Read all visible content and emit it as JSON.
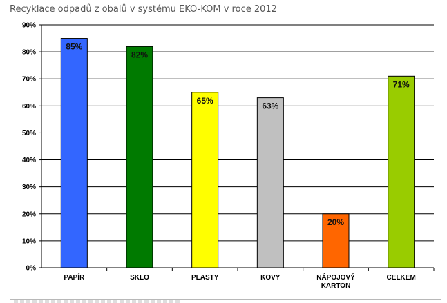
{
  "page": {
    "title": "Recyklace odpadů z obalů v systému EKO-KOM v roce 2012"
  },
  "chart_data": {
    "type": "bar",
    "title": "",
    "xlabel": "",
    "ylabel": "",
    "ylim": [
      0,
      90
    ],
    "y_ticks": [
      "0%",
      "10%",
      "20%",
      "30%",
      "40%",
      "50%",
      "60%",
      "70%",
      "80%",
      "90%"
    ],
    "grid": true,
    "legend": "none",
    "categories": [
      [
        "PAPÍR"
      ],
      [
        "SKLO"
      ],
      [
        "PLASTY"
      ],
      [
        "KOVY"
      ],
      [
        "NÁPOJOVÝ",
        "KARTON"
      ],
      [
        "CELKEM"
      ]
    ],
    "values": [
      85,
      82,
      65,
      63,
      20,
      71
    ],
    "data_labels": [
      "85%",
      "82%",
      "65%",
      "63%",
      "20%",
      "71%"
    ],
    "colors": [
      "#3366ff",
      "#007a00",
      "#ffff00",
      "#c0c0c0",
      "#ff6600",
      "#99cc00"
    ]
  }
}
